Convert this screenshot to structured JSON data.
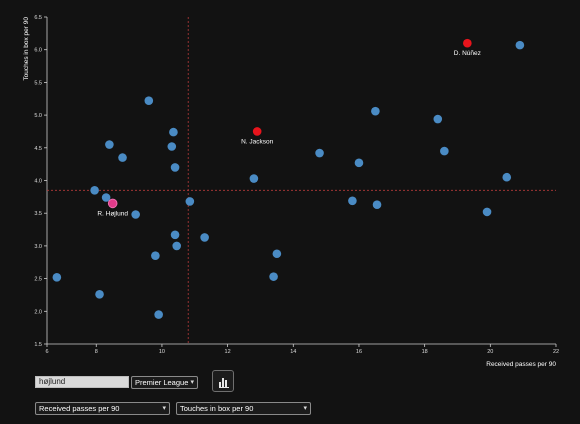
{
  "chart_data": {
    "type": "scatter",
    "xlabel": "Received passes per 90",
    "ylabel": "Touches in box per 90",
    "xlim": [
      6.5,
      22
    ],
    "ylim": [
      1.5,
      6.5
    ],
    "xticks": [
      6,
      8,
      10,
      12,
      14,
      16,
      18,
      20,
      22
    ],
    "yticks": [
      1.5,
      2.0,
      2.5,
      3.0,
      3.5,
      4.0,
      4.5,
      5.0,
      5.5,
      6.0,
      6.5
    ],
    "xtick_labels": [
      "6",
      "8",
      "10",
      "12",
      "14",
      "16",
      "18",
      "20",
      "22"
    ],
    "ytick_labels": [
      "1.5",
      "2.0",
      "2.5",
      "3.0",
      "3.5",
      "4.0",
      "4.5",
      "5.0",
      "5.5",
      "6.0",
      "6.5"
    ],
    "reference_lines": {
      "x": 10.8,
      "y": 3.85
    },
    "colors": {
      "default": "#4a8bc4",
      "highlight": "#e8141c",
      "selected": "#e23a8a",
      "reference": "#b53a3a"
    },
    "points": [
      {
        "x": 19.3,
        "y": 6.1,
        "label": "D. Núñez",
        "kind": "highlight"
      },
      {
        "x": 20.9,
        "y": 6.07
      },
      {
        "x": 12.9,
        "y": 4.75,
        "label": "N. Jackson",
        "kind": "highlight"
      },
      {
        "x": 8.5,
        "y": 3.65,
        "label": "R. Højlund",
        "kind": "selected"
      },
      {
        "x": 6.8,
        "y": 2.52
      },
      {
        "x": 8.1,
        "y": 2.26
      },
      {
        "x": 9.8,
        "y": 2.85
      },
      {
        "x": 9.9,
        "y": 1.95
      },
      {
        "x": 8.3,
        "y": 3.74
      },
      {
        "x": 7.95,
        "y": 3.85
      },
      {
        "x": 8.4,
        "y": 4.55
      },
      {
        "x": 8.8,
        "y": 4.35
      },
      {
        "x": 9.2,
        "y": 3.48
      },
      {
        "x": 9.6,
        "y": 5.22
      },
      {
        "x": 10.3,
        "y": 4.52
      },
      {
        "x": 10.35,
        "y": 4.74
      },
      {
        "x": 10.4,
        "y": 4.2
      },
      {
        "x": 10.85,
        "y": 3.68
      },
      {
        "x": 10.4,
        "y": 3.17
      },
      {
        "x": 10.45,
        "y": 3.0
      },
      {
        "x": 11.3,
        "y": 3.13
      },
      {
        "x": 12.8,
        "y": 4.03
      },
      {
        "x": 13.5,
        "y": 2.88
      },
      {
        "x": 13.4,
        "y": 2.53
      },
      {
        "x": 14.8,
        "y": 4.42
      },
      {
        "x": 15.8,
        "y": 3.69
      },
      {
        "x": 16.0,
        "y": 4.27
      },
      {
        "x": 16.5,
        "y": 5.06
      },
      {
        "x": 16.55,
        "y": 3.63
      },
      {
        "x": 18.4,
        "y": 4.94
      },
      {
        "x": 18.6,
        "y": 4.45
      },
      {
        "x": 19.9,
        "y": 3.52
      },
      {
        "x": 20.5,
        "y": 4.05
      }
    ]
  },
  "controls": {
    "search_value": "højlund",
    "league_selected": "Premier League",
    "x_metric_selected": "Received passes per 90",
    "y_metric_selected": "Touches in box per 90"
  },
  "icons": {
    "chart_button_icon": "bar-chart-icon",
    "dropdown_icon": "chevron-down-icon"
  }
}
